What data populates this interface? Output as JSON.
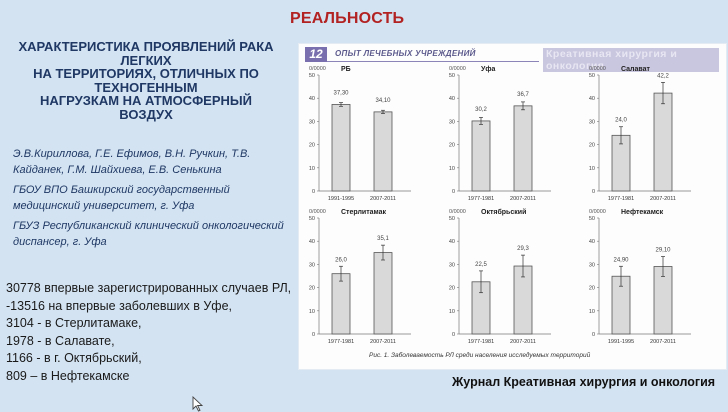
{
  "slide": {
    "title": "РЕАЛЬНОСТЬ",
    "heading_lines": [
      "ХАРАКТЕРИСТИКА ПРОЯВЛЕНИЙ РАКА",
      "ЛЕГКИХ",
      "НА ТЕРРИТОРИЯХ, ОТЛИЧНЫХ ПО",
      "ТЕХНОГЕННЫМ",
      "НАГРУЗКАМ НА АТМОСФЕРНЫЙ",
      "ВОЗДУХ"
    ],
    "authors": [
      "Э.В.Кириллова, Г.Е. Ефимов, В.Н. Ручкин, Т.В. Кайданек, Г.М. Шайхиева, Е.В. Сенькина",
      "ГБОУ ВПО Башкирский государственный медицинский университет, г. Уфа",
      "ГБУЗ Республиканский клинический онкологический диспансер, г. Уфа"
    ],
    "stats": [
      "30778 впервые зарегистрированных случаев РЛ,",
      "-13516 на впервые заболевших в Уфе,",
      "3104 - в Стерлитамаке,",
      "1978 - в Салавате,",
      "1166 - в г. Октябрьский,",
      "809 – в Нефтекамске"
    ],
    "journal_caption": "Журнал Креативная хирургия и онкология"
  },
  "panel": {
    "page_number": "12",
    "section": "ОПЫТ ЛЕЧЕБНЫХ УЧРЕЖДЕНИЙ",
    "journal_mark": "Креативная хирургия и онкология",
    "figure_caption": "Рис. 1. Заболеваемость РЛ среди населения исследуемых территорий",
    "unit_label": "0/0000"
  },
  "colors": {
    "title_red": "#b22222",
    "heading_navy": "#1f3864",
    "badge_purple": "#7a6fae",
    "bar_fill": "#d9d9d9",
    "bar_stroke": "#555555",
    "background": "#d3e3f2"
  },
  "chart_data": [
    {
      "type": "bar",
      "title": "РБ",
      "categories": [
        "1991-1995",
        "2007-2011"
      ],
      "values": [
        37.3,
        34.1
      ],
      "labels": [
        "37,30",
        "34,10"
      ],
      "error": [
        0.8,
        0.7
      ],
      "ylabel": "0/0000",
      "ylim": [
        0,
        50
      ],
      "yticks": [
        0,
        10,
        20,
        30,
        40,
        50
      ]
    },
    {
      "type": "bar",
      "title": "Уфа",
      "categories": [
        "1977-1981",
        "2007-2011"
      ],
      "values": [
        30.2,
        36.7
      ],
      "labels": [
        "30,2",
        "36,7"
      ],
      "error": [
        1.5,
        1.7
      ],
      "ylabel": "0/0000",
      "ylim": [
        0,
        50
      ],
      "yticks": [
        0,
        10,
        20,
        30,
        40,
        50
      ]
    },
    {
      "type": "bar",
      "title": "Салават",
      "categories": [
        "1977-1981",
        "2007-2011"
      ],
      "values": [
        24.0,
        42.2
      ],
      "labels": [
        "24,0",
        "42,2"
      ],
      "error": [
        3.7,
        4.6
      ],
      "ylabel": "0/0000",
      "ylim": [
        0,
        50
      ],
      "yticks": [
        0,
        10,
        20,
        30,
        40,
        50
      ]
    },
    {
      "type": "bar",
      "title": "Стерлитамак",
      "categories": [
        "1977-1981",
        "2007-2011"
      ],
      "values": [
        26.0,
        35.1
      ],
      "labels": [
        "26,0",
        "35,1"
      ],
      "error": [
        3.2,
        3.2
      ],
      "ylabel": "0/0000",
      "ylim": [
        0,
        50
      ],
      "yticks": [
        0,
        10,
        20,
        30,
        40,
        50
      ]
    },
    {
      "type": "bar",
      "title": "Октябрьский",
      "categories": [
        "1977-1981",
        "2007-2011"
      ],
      "values": [
        22.5,
        29.3
      ],
      "labels": [
        "22,5",
        "29,3"
      ],
      "error": [
        4.7,
        4.7
      ],
      "ylabel": "0/0000",
      "ylim": [
        0,
        50
      ],
      "yticks": [
        0,
        10,
        20,
        30,
        40,
        50
      ]
    },
    {
      "type": "bar",
      "title": "Нефтекамск",
      "categories": [
        "1991-1995",
        "2007-2011"
      ],
      "values": [
        24.9,
        29.1
      ],
      "labels": [
        "24,90",
        "29,10"
      ],
      "error": [
        4.3,
        4.3
      ],
      "ylabel": "0/0000",
      "ylim": [
        0,
        50
      ],
      "yticks": [
        0,
        10,
        20,
        30,
        40,
        50
      ]
    }
  ]
}
